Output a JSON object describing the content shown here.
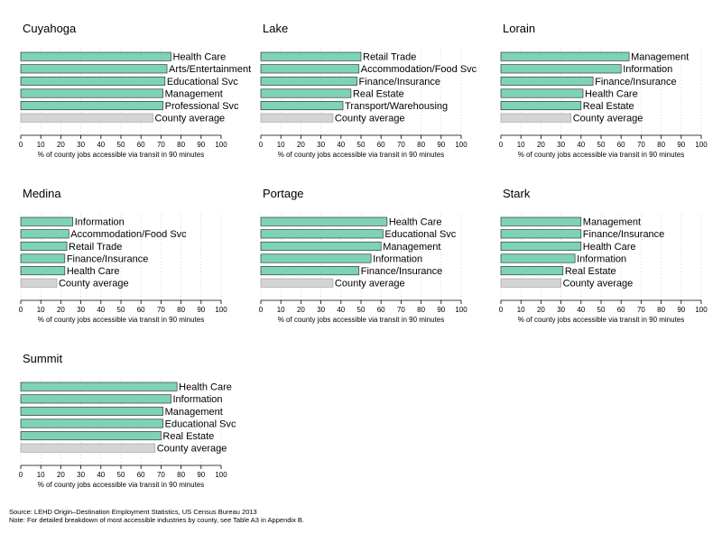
{
  "colors": {
    "industry_bar": "#7fd3b5",
    "industry_edge": "#1f1f1f",
    "average_bar": "#d4d4d4",
    "average_edge": "#9a9a9a"
  },
  "chart_data": [
    {
      "type": "bar",
      "title": "Cuyahoga",
      "orientation": "horizontal",
      "categories": [
        "Health Care",
        "Arts/Entertainment",
        "Educational Svc",
        "Management",
        "Professional Svc",
        "County average"
      ],
      "values": [
        75,
        73,
        72,
        71,
        71,
        66
      ],
      "xlabel": "% of county jobs accessible via transit in 90 minutes",
      "xlim": [
        0,
        100
      ],
      "xticks": [
        0,
        10,
        20,
        30,
        40,
        50,
        60,
        70,
        80,
        90,
        100
      ],
      "grid": "vertical dotted"
    },
    {
      "type": "bar",
      "title": "Lake",
      "orientation": "horizontal",
      "categories": [
        "Retail Trade",
        "Accommodation/Food Svc",
        "Finance/Insurance",
        "Real Estate",
        "Transport/Warehousing",
        "County average"
      ],
      "values": [
        50,
        49,
        48,
        45,
        41,
        36
      ],
      "xlabel": "% of county jobs accessible via transit in 90 minutes",
      "xlim": [
        0,
        100
      ],
      "xticks": [
        0,
        10,
        20,
        30,
        40,
        50,
        60,
        70,
        80,
        90,
        100
      ],
      "grid": "vertical dotted"
    },
    {
      "type": "bar",
      "title": "Lorain",
      "orientation": "horizontal",
      "categories": [
        "Management",
        "Information",
        "Finance/Insurance",
        "Health Care",
        "Real Estate",
        "County average"
      ],
      "values": [
        64,
        60,
        46,
        41,
        40,
        35
      ],
      "xlabel": "% of county jobs accessible via transit in 90 minutes",
      "xlim": [
        0,
        100
      ],
      "xticks": [
        0,
        10,
        20,
        30,
        40,
        50,
        60,
        70,
        80,
        90,
        100
      ],
      "grid": "vertical dotted"
    },
    {
      "type": "bar",
      "title": "Medina",
      "orientation": "horizontal",
      "categories": [
        "Information",
        "Accommodation/Food Svc",
        "Retail Trade",
        "Finance/Insurance",
        "Health Care",
        "County average"
      ],
      "values": [
        26,
        24,
        23,
        22,
        22,
        18
      ],
      "xlabel": "% of county jobs accessible via transit in 90 minutes",
      "xlim": [
        0,
        100
      ],
      "xticks": [
        0,
        10,
        20,
        30,
        40,
        50,
        60,
        70,
        80,
        90,
        100
      ],
      "grid": "vertical dotted"
    },
    {
      "type": "bar",
      "title": "Portage",
      "orientation": "horizontal",
      "categories": [
        "Health Care",
        "Educational Svc",
        "Management",
        "Information",
        "Finance/Insurance",
        "County average"
      ],
      "values": [
        63,
        61,
        60,
        55,
        49,
        36
      ],
      "xlabel": "% of county jobs accessible via transit in 90 minutes",
      "xlim": [
        0,
        100
      ],
      "xticks": [
        0,
        10,
        20,
        30,
        40,
        50,
        60,
        70,
        80,
        90,
        100
      ],
      "grid": "vertical dotted"
    },
    {
      "type": "bar",
      "title": "Stark",
      "orientation": "horizontal",
      "categories": [
        "Management",
        "Finance/Insurance",
        "Health Care",
        "Information",
        "Real Estate",
        "County average"
      ],
      "values": [
        40,
        40,
        40,
        37,
        31,
        30
      ],
      "xlabel": "% of county jobs accessible via transit in 90 minutes",
      "xlim": [
        0,
        100
      ],
      "xticks": [
        0,
        10,
        20,
        30,
        40,
        50,
        60,
        70,
        80,
        90,
        100
      ],
      "grid": "vertical dotted"
    },
    {
      "type": "bar",
      "title": "Summit",
      "orientation": "horizontal",
      "categories": [
        "Health Care",
        "Information",
        "Management",
        "Educational Svc",
        "Real Estate",
        "County average"
      ],
      "values": [
        78,
        75,
        71,
        71,
        70,
        67
      ],
      "xlabel": "% of county jobs accessible via transit in 90 minutes",
      "xlim": [
        0,
        100
      ],
      "xticks": [
        0,
        10,
        20,
        30,
        40,
        50,
        60,
        70,
        80,
        90,
        100
      ],
      "grid": "vertical dotted"
    }
  ],
  "footnotes": {
    "source": "Source: LEHD Origin–Destination Employment Statistics, US Census Bureau 2013",
    "note": "Note: For detailed breakdown of most accessible industries by county, see Table A3 in Appendix B."
  }
}
